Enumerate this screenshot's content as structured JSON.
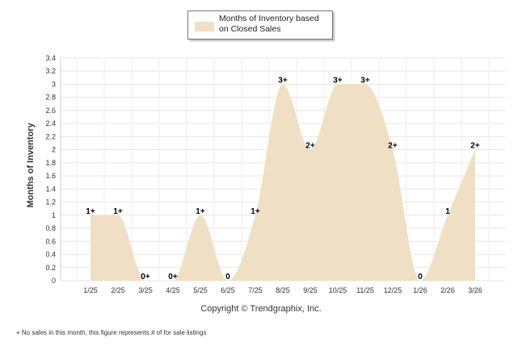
{
  "chart_data": {
    "type": "area",
    "ylabel": "Months of Inventory",
    "ylim": [
      0,
      3.4
    ],
    "ytick_step": 0.2,
    "ytick_labels": [
      "0",
      "0.2",
      "0.4",
      "0.6",
      "0.8",
      "1",
      "1.2",
      "1.4",
      "1.6",
      "1.8",
      "2",
      "2.2",
      "2.4",
      "2.6",
      "2.8",
      "3",
      "3.2",
      "3.4"
    ],
    "categories": [
      "1/25",
      "2/25",
      "3/25",
      "4/25",
      "5/25",
      "6/25",
      "7/25",
      "8/25",
      "9/25",
      "10/25",
      "11/25",
      "12/25",
      "1/26",
      "2/26",
      "3/26"
    ],
    "series": [
      {
        "name": "Months of Inventory based on Closed Sales",
        "values": [
          1,
          1,
          0,
          0,
          1,
          0,
          1,
          3,
          2,
          3,
          3,
          2,
          0,
          1,
          2
        ],
        "point_labels": [
          "1+",
          "1+",
          "0+",
          "0+",
          "1+",
          "0",
          "1+",
          "3+",
          "2+",
          "3+",
          "3+",
          "2+",
          "0",
          "1",
          "2+"
        ],
        "color": "#efdfc4"
      }
    ],
    "grid": true,
    "legend_position": "top-center"
  },
  "legend": {
    "label": "Months of Inventory based on Closed Sales"
  },
  "copyright": "Copyright © Trendgraphix, Inc.",
  "footnote": "+ No sales in this month, this figure represents # of for sale listings"
}
